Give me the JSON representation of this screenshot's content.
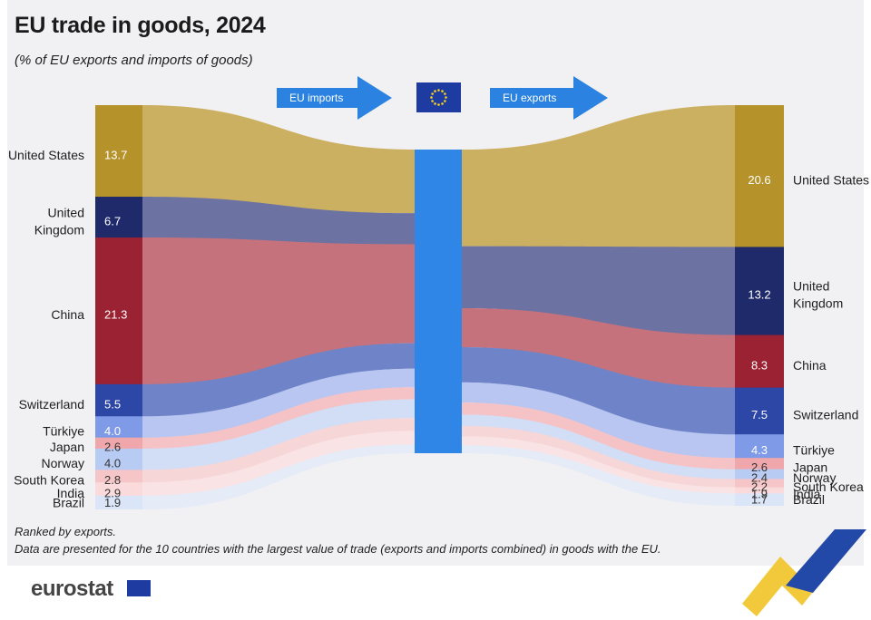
{
  "title": "EU trade in goods, 2024",
  "subtitle": "(% of EU exports and imports of goods)",
  "labels": {
    "imports": "EU imports",
    "exports": "EU exports"
  },
  "notes": [
    "Ranked by exports.",
    "Data are presented for the 10 countries with the largest value of trade (exports and imports combined) in goods with the EU."
  ],
  "logo": "eurostat",
  "colors": {
    "center_bar": "#2f86e6",
    "arrow": "#2b82e0",
    "eu_flag": "#1d3ba0",
    "panel": "#f1f1f3"
  },
  "chart_data": {
    "type": "sankey",
    "series": [
      {
        "name": "EU imports",
        "values": [
          13.7,
          6.7,
          21.3,
          5.5,
          4.0,
          2.6,
          4.0,
          2.8,
          2.9,
          1.9
        ]
      },
      {
        "name": "EU exports",
        "values": [
          20.6,
          13.2,
          8.3,
          7.5,
          4.3,
          2.6,
          2.4,
          2.2,
          1.9,
          1.7
        ]
      }
    ],
    "categories": [
      "United States",
      "United Kingdom",
      "China",
      "Switzerland",
      "Türkiye",
      "Japan",
      "Norway",
      "South Korea",
      "India",
      "Brazil"
    ],
    "imports": [
      {
        "country": "United States",
        "label": "United States",
        "value": 13.7
      },
      {
        "country": "United Kingdom",
        "label": "United\nKingdom",
        "value": 6.7
      },
      {
        "country": "China",
        "label": "China",
        "value": 21.3
      },
      {
        "country": "Switzerland",
        "label": "Switzerland",
        "value": 5.5
      },
      {
        "country": "Türkiye",
        "label": "Türkiye",
        "value": 4.0
      },
      {
        "country": "Japan",
        "label": "Japan",
        "value": 2.6
      },
      {
        "country": "Norway",
        "label": "Norway",
        "value": 4.0
      },
      {
        "country": "South Korea",
        "label": "South Korea",
        "value": 2.8
      },
      {
        "country": "India",
        "label": "India",
        "value": 2.9
      },
      {
        "country": "Brazil",
        "label": "Brazil",
        "value": 1.9
      }
    ],
    "exports": [
      {
        "country": "United States",
        "label": "United States",
        "value": 20.6
      },
      {
        "country": "United Kingdom",
        "label": "United\nKingdom",
        "value": 13.2
      },
      {
        "country": "China",
        "label": "China",
        "value": 8.3
      },
      {
        "country": "Switzerland",
        "label": "Switzerland",
        "value": 7.5
      },
      {
        "country": "Türkiye",
        "label": "Türkiye",
        "value": 4.3
      },
      {
        "country": "Japan",
        "label": "Japan",
        "value": 2.6
      },
      {
        "country": "Norway",
        "label": "Norway",
        "value": 2.4
      },
      {
        "country": "South Korea",
        "label": "South Korea",
        "value": 2.2
      },
      {
        "country": "India",
        "label": "India",
        "value": 1.9
      },
      {
        "country": "Brazil",
        "label": "Brazil",
        "value": 1.7
      }
    ],
    "country_colors": {
      "United States": {
        "box": "#b5922a",
        "flow": "#ccb061"
      },
      "United Kingdom": {
        "box": "#1f2a6b",
        "flow": "#6c73a3"
      },
      "China": {
        "box": "#9b2232",
        "flow": "#c5727c"
      },
      "Switzerland": {
        "box": "#2d47a6",
        "flow": "#6f84c8"
      },
      "Türkiye": {
        "box": "#7f9ae6",
        "flow": "#b8c6f1"
      },
      "Japan": {
        "box": "#f0a7ac",
        "flow": "#f5c3c6"
      },
      "Norway": {
        "box": "#b8cbf3",
        "flow": "#d2ddf6"
      },
      "South Korea": {
        "box": "#f5c5c8",
        "flow": "#f7d6d8"
      },
      "India": {
        "box": "#fadadb",
        "flow": "#f9e3e4"
      },
      "Brazil": {
        "box": "#dbe5f8",
        "flow": "#e5ebf7"
      }
    },
    "light_text": [
      "United States",
      "United Kingdom",
      "China",
      "Switzerland",
      "Türkiye"
    ]
  }
}
